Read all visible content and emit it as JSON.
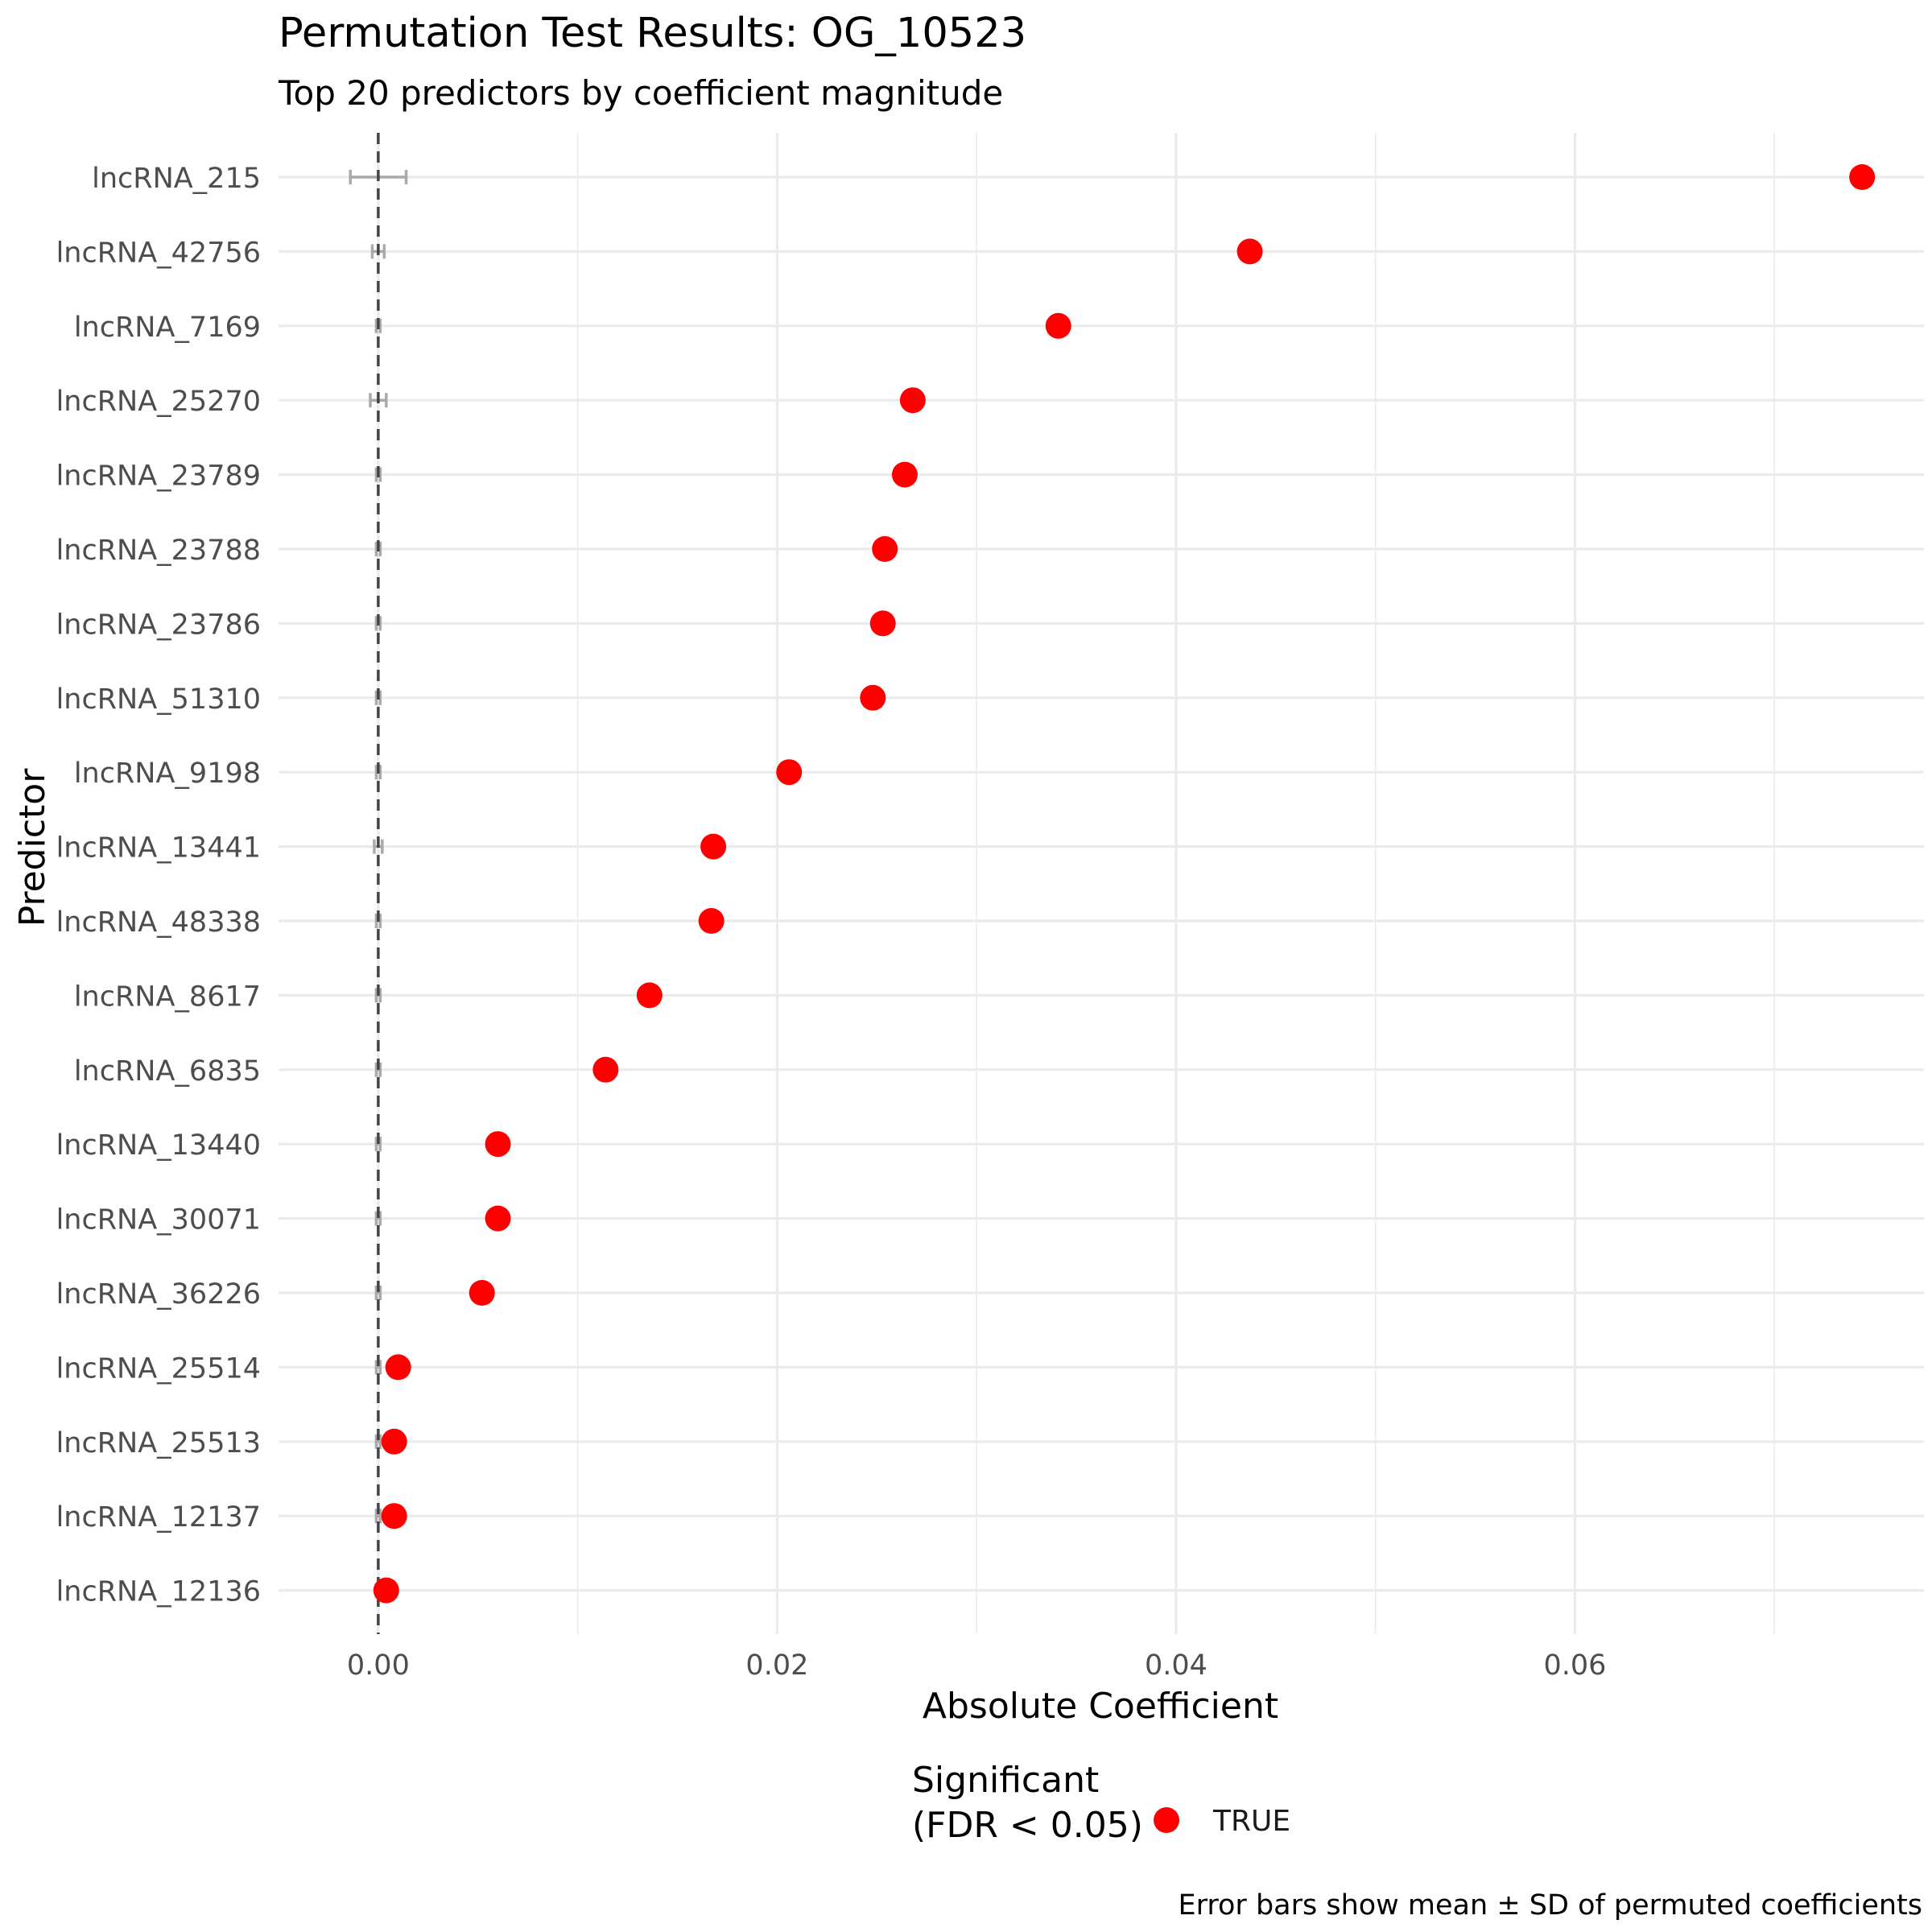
{
  "chart_data": {
    "type": "scatter",
    "title": "Permutation Test Results: OG_10523",
    "subtitle": "Top 20 predictors by coefficient magnitude",
    "xlabel": "Absolute Coefficient",
    "ylabel": "Predictor",
    "xlim": [
      -0.005,
      0.0775
    ],
    "x_ticks": [
      0.0,
      0.02,
      0.04,
      0.06
    ],
    "x_tick_labels": [
      "0.00",
      "0.02",
      "0.04",
      "0.06"
    ],
    "reference_line_x": 0,
    "grid": true,
    "legend": {
      "title_line1": "Significant",
      "title_line2": "(FDR < 0.05)",
      "entries": [
        {
          "label": "TRUE",
          "color": "#ff0000"
        }
      ],
      "position": "bottom"
    },
    "caption": "Error bars show mean ± SD of permuted coefficients",
    "colors": {
      "point": "#ff0000",
      "errorbar": "#aaaaaa",
      "grid": "#ebebeb",
      "refline": "#444444",
      "text": "#222222",
      "tick_text": "#4d4d4d"
    },
    "categories": [
      "lncRNA_215",
      "lncRNA_42756",
      "lncRNA_7169",
      "lncRNA_25270",
      "lncRNA_23789",
      "lncRNA_23788",
      "lncRNA_23786",
      "lncRNA_51310",
      "lncRNA_9198",
      "lncRNA_13441",
      "lncRNA_48338",
      "lncRNA_8617",
      "lncRNA_6835",
      "lncRNA_13440",
      "lncRNA_30071",
      "lncRNA_36226",
      "lncRNA_25514",
      "lncRNA_25513",
      "lncRNA_12137",
      "lncRNA_12136"
    ],
    "values": [
      0.0744,
      0.0437,
      0.0341,
      0.0268,
      0.0264,
      0.0254,
      0.0253,
      0.0248,
      0.0206,
      0.0168,
      0.0167,
      0.0136,
      0.0114,
      0.006,
      0.006,
      0.0052,
      0.001,
      0.0008,
      0.0008,
      0.0004
    ],
    "perm_mean": [
      0.0,
      0.0,
      0.0,
      0.0,
      0.0,
      0.0,
      0.0,
      0.0,
      0.0,
      0.0,
      0.0,
      0.0,
      0.0,
      0.0,
      0.0,
      0.0,
      0.0,
      0.0,
      0.0,
      0.0
    ],
    "perm_sd": [
      0.0014,
      0.0003,
      0.0001,
      0.0004,
      0.0001,
      0.0001,
      0.0001,
      0.0001,
      0.0001,
      0.0002,
      0.0001,
      0.0001,
      0.0001,
      0.0001,
      0.0001,
      0.0001,
      0.0001,
      0.0001,
      0.0001,
      0.0001
    ]
  }
}
